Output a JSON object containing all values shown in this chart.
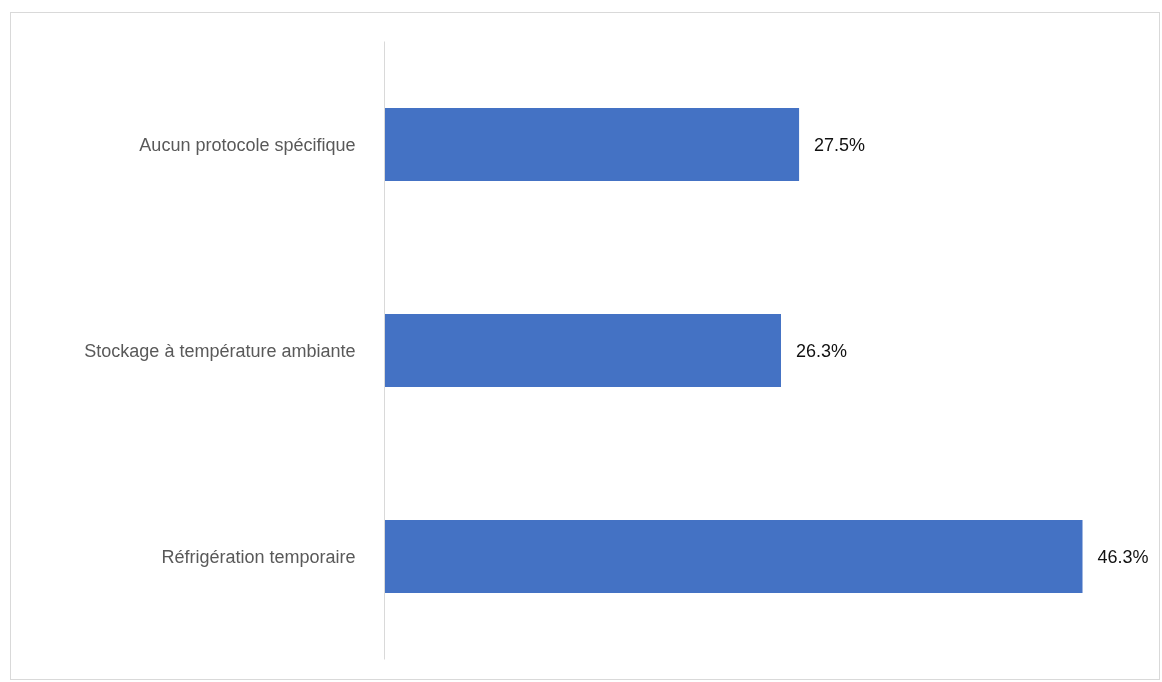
{
  "chart_data": {
    "type": "bar",
    "orientation": "horizontal",
    "categories": [
      "Aucun protocole spécifique",
      "Stockage à température ambiante",
      "Réfrigération temporaire"
    ],
    "values": [
      27.5,
      26.3,
      46.3
    ],
    "color": "#4472c4",
    "value_labels": [
      "27.5%",
      "26.3%",
      "46.3%"
    ]
  }
}
